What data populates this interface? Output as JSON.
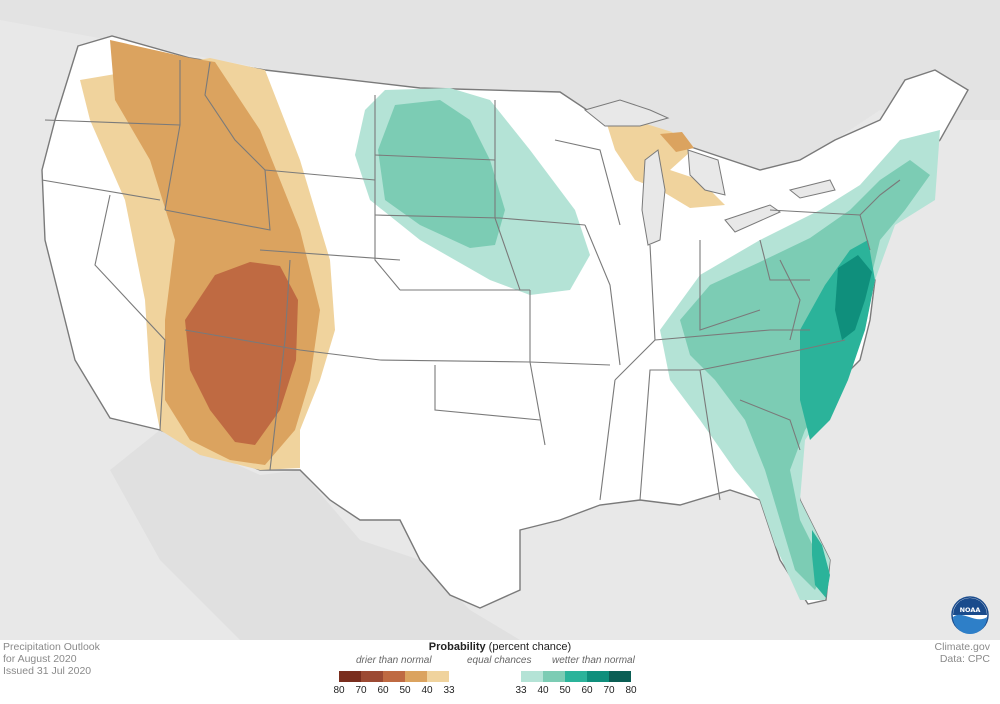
{
  "credit_left": [
    "Precipitation Outlook",
    "for August 2020",
    "Issued 31 Jul 2020"
  ],
  "credit_right": [
    "Climate.gov",
    "Data: CPC"
  ],
  "legend": {
    "title_bold": "Probability",
    "title_rest": " (percent chance)",
    "drier_label": "drier than normal",
    "equal_label": "equal chances",
    "wetter_label": "wetter than normal",
    "dry_ticks": [
      "80",
      "70",
      "60",
      "50",
      "40",
      "33"
    ],
    "wet_ticks": [
      "33",
      "40",
      "50",
      "60",
      "70",
      "80"
    ],
    "dry_colors": [
      "#7a2e1e",
      "#9c4a33",
      "#bf6a42",
      "#dba35f",
      "#f0d39d"
    ],
    "wet_colors": [
      "#b4e3d6",
      "#7cccb4",
      "#2bb39a",
      "#0f8f7c",
      "#0b5e54"
    ]
  },
  "colors": {
    "land": "#ffffff",
    "background": "#e8e8e8",
    "border": "#7a7a7a"
  },
  "logo_icon": "noaa-logo-icon"
}
